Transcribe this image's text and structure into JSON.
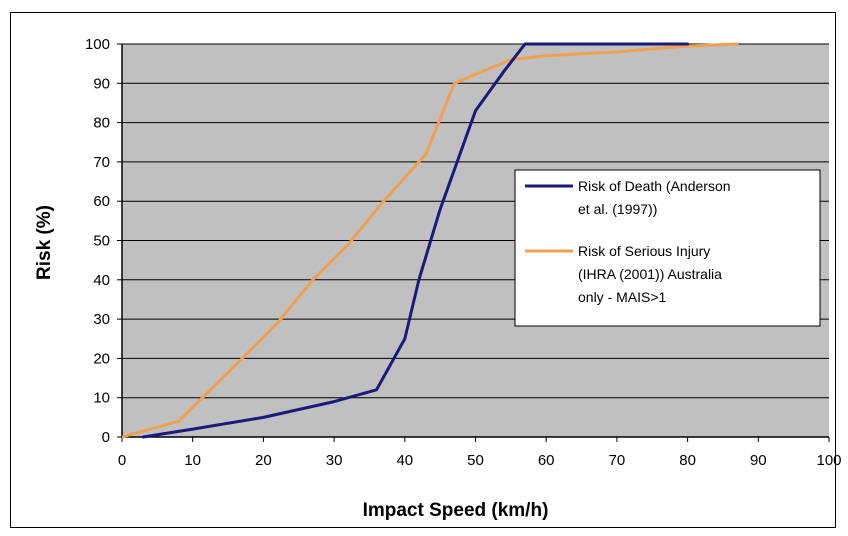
{
  "chart_data": {
    "type": "line",
    "title": "",
    "xlabel": "Impact Speed (km/h)",
    "ylabel": "Risk (%)",
    "xlim": [
      0,
      100
    ],
    "ylim": [
      0,
      100
    ],
    "x_ticks": [
      "0",
      "10",
      "20",
      "30",
      "40",
      "50",
      "60",
      "70",
      "80",
      "90",
      "100"
    ],
    "y_ticks": [
      "0",
      "10",
      "20",
      "30",
      "40",
      "50",
      "60",
      "70",
      "80",
      "90",
      "100"
    ],
    "grid": true,
    "plot_background": "#c0c0c0",
    "legend_position": "right",
    "series": [
      {
        "name": "Risk of Death (Anderson et al. (1997))",
        "legend_lines": [
          "Risk of Death (Anderson",
          "et al. (1997))"
        ],
        "color": "#1a1a7a",
        "points": [
          [
            3,
            0
          ],
          [
            10,
            2
          ],
          [
            20,
            5
          ],
          [
            30,
            9
          ],
          [
            36,
            12
          ],
          [
            40,
            25
          ],
          [
            42,
            40
          ],
          [
            45,
            58
          ],
          [
            50,
            83
          ],
          [
            54,
            93
          ],
          [
            57,
            100
          ],
          [
            80,
            100
          ]
        ]
      },
      {
        "name": "Risk of Serious Injury (IHRA (2001)) Australia only - MAIS>1",
        "legend_lines": [
          "Risk of Serious Injury",
          "(IHRA (2001)) Australia",
          "only - MAIS>1"
        ],
        "color": "#f0a050",
        "points": [
          [
            0,
            0
          ],
          [
            8,
            4
          ],
          [
            17,
            20
          ],
          [
            22,
            29
          ],
          [
            27,
            40
          ],
          [
            32,
            49
          ],
          [
            37,
            60
          ],
          [
            43,
            72
          ],
          [
            47,
            90
          ],
          [
            55,
            96
          ],
          [
            60,
            97
          ],
          [
            70,
            98
          ],
          [
            80,
            99.5
          ],
          [
            87,
            100
          ]
        ]
      }
    ]
  }
}
